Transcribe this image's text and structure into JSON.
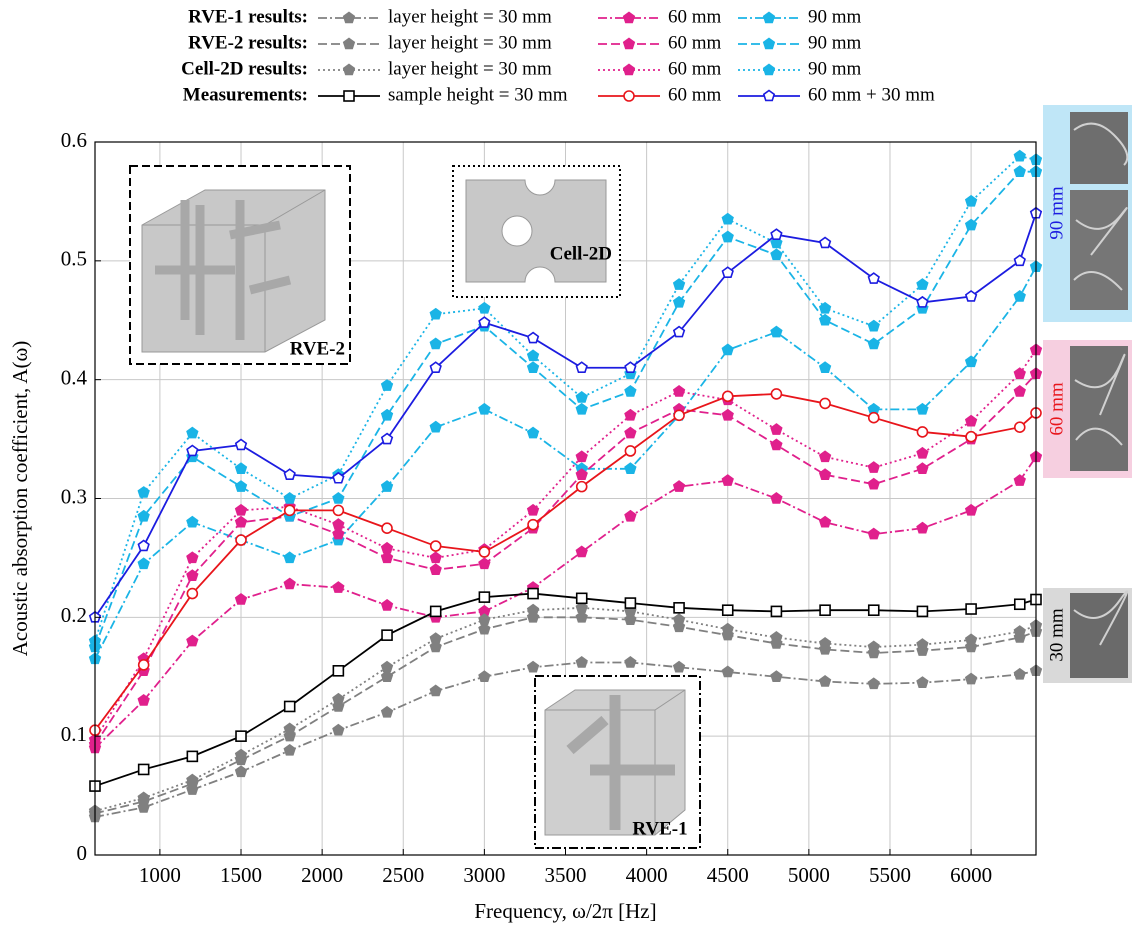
{
  "chart_data": {
    "type": "line",
    "x_label": "Frequency, ω/2π [Hz]",
    "y_label": "Acoustic absorption coefficient, A(ω)",
    "xlim": [
      600,
      6400
    ],
    "ylim": [
      0,
      0.6
    ],
    "xticks": [
      1000,
      1500,
      2000,
      2500,
      3000,
      3500,
      4000,
      4500,
      5000,
      5500,
      6000
    ],
    "yticks": [
      0,
      0.1,
      0.2,
      0.3,
      0.4,
      0.5,
      0.6
    ],
    "grid": true,
    "legend_rows": [
      "RVE-1 results:",
      "RVE-2 results:",
      "Cell-2D results:",
      "Measurements:"
    ],
    "annotations": [
      "RVE-2",
      "Cell-2D",
      "RVE-1"
    ],
    "side_labels": [
      "90 mm",
      "60 mm",
      "30 mm"
    ],
    "x": [
      600,
      900,
      1200,
      1500,
      1800,
      2100,
      2400,
      2700,
      3000,
      3300,
      3600,
      3900,
      4200,
      4500,
      4800,
      5100,
      5400,
      5700,
      6000,
      6300,
      6400
    ],
    "series": [
      {
        "name": "layer height = 30 mm",
        "color": "#808080",
        "dash": "dashdot",
        "marker": "pentagon-filled",
        "values": [
          0.032,
          0.04,
          0.055,
          0.07,
          0.088,
          0.105,
          0.12,
          0.138,
          0.15,
          0.158,
          0.162,
          0.162,
          0.158,
          0.154,
          0.15,
          0.146,
          0.144,
          0.145,
          0.148,
          0.152,
          0.155
        ]
      },
      {
        "name": "60 mm",
        "color": "#e0208c",
        "dash": "dashdot",
        "marker": "pentagon-filled",
        "values": [
          0.09,
          0.13,
          0.18,
          0.215,
          0.228,
          0.225,
          0.21,
          0.2,
          0.205,
          0.225,
          0.255,
          0.285,
          0.31,
          0.315,
          0.3,
          0.28,
          0.27,
          0.275,
          0.29,
          0.315,
          0.335
        ]
      },
      {
        "name": "90 mm",
        "color": "#1ab4e6",
        "dash": "dashdot",
        "marker": "pentagon-filled",
        "values": [
          0.165,
          0.245,
          0.28,
          0.265,
          0.25,
          0.265,
          0.31,
          0.36,
          0.375,
          0.355,
          0.325,
          0.325,
          0.37,
          0.425,
          0.44,
          0.41,
          0.375,
          0.375,
          0.415,
          0.47,
          0.495
        ]
      },
      {
        "name": "layer height = 30 mm",
        "color": "#808080",
        "dash": "dashed",
        "marker": "pentagon-filled",
        "values": [
          0.035,
          0.045,
          0.06,
          0.08,
          0.1,
          0.125,
          0.15,
          0.175,
          0.19,
          0.2,
          0.2,
          0.198,
          0.192,
          0.185,
          0.178,
          0.173,
          0.17,
          0.172,
          0.175,
          0.183,
          0.188
        ]
      },
      {
        "name": "60 mm",
        "color": "#e0208c",
        "dash": "dashed",
        "marker": "pentagon-filled",
        "values": [
          0.093,
          0.155,
          0.235,
          0.28,
          0.285,
          0.27,
          0.25,
          0.24,
          0.245,
          0.275,
          0.32,
          0.355,
          0.375,
          0.37,
          0.345,
          0.32,
          0.312,
          0.325,
          0.35,
          0.39,
          0.405
        ]
      },
      {
        "name": "90 mm",
        "color": "#1ab4e6",
        "dash": "dashed",
        "marker": "pentagon-filled",
        "values": [
          0.175,
          0.285,
          0.335,
          0.31,
          0.285,
          0.3,
          0.37,
          0.43,
          0.445,
          0.41,
          0.375,
          0.39,
          0.465,
          0.52,
          0.505,
          0.45,
          0.43,
          0.46,
          0.53,
          0.575,
          0.575
        ]
      },
      {
        "name": "layer height = 30 mm",
        "color": "#808080",
        "dash": "dotted",
        "marker": "pentagon-filled",
        "values": [
          0.037,
          0.048,
          0.063,
          0.084,
          0.106,
          0.131,
          0.158,
          0.182,
          0.198,
          0.206,
          0.208,
          0.205,
          0.198,
          0.19,
          0.183,
          0.178,
          0.175,
          0.177,
          0.181,
          0.188,
          0.193
        ]
      },
      {
        "name": "60 mm",
        "color": "#e0208c",
        "dash": "dotted",
        "marker": "pentagon-filled",
        "values": [
          0.097,
          0.165,
          0.25,
          0.29,
          0.293,
          0.278,
          0.258,
          0.25,
          0.257,
          0.29,
          0.335,
          0.37,
          0.39,
          0.383,
          0.358,
          0.335,
          0.326,
          0.338,
          0.365,
          0.405,
          0.425
        ]
      },
      {
        "name": "90 mm",
        "color": "#1ab4e6",
        "dash": "dotted",
        "marker": "pentagon-filled",
        "values": [
          0.18,
          0.305,
          0.355,
          0.325,
          0.3,
          0.32,
          0.395,
          0.455,
          0.46,
          0.42,
          0.385,
          0.405,
          0.48,
          0.535,
          0.515,
          0.46,
          0.445,
          0.48,
          0.55,
          0.588,
          0.585
        ]
      },
      {
        "name": "sample height = 30 mm",
        "color": "#000000",
        "dash": "solid",
        "marker": "square-open",
        "values": [
          0.058,
          0.072,
          0.083,
          0.1,
          0.125,
          0.155,
          0.185,
          0.205,
          0.217,
          0.22,
          0.216,
          0.212,
          0.208,
          0.206,
          0.205,
          0.206,
          0.206,
          0.205,
          0.207,
          0.211,
          0.215
        ]
      },
      {
        "name": "60 mm",
        "color": "#e8151b",
        "dash": "solid",
        "marker": "circle-open",
        "values": [
          0.105,
          0.16,
          0.22,
          0.265,
          0.29,
          0.29,
          0.275,
          0.26,
          0.255,
          0.278,
          0.31,
          0.34,
          0.37,
          0.386,
          0.388,
          0.38,
          0.368,
          0.356,
          0.352,
          0.36,
          0.372
        ]
      },
      {
        "name": "60 mm + 30 mm",
        "color": "#1c1ce0",
        "dash": "solid",
        "marker": "pentagon-open",
        "values": [
          0.2,
          0.26,
          0.34,
          0.345,
          0.32,
          0.317,
          0.35,
          0.41,
          0.448,
          0.435,
          0.41,
          0.41,
          0.44,
          0.49,
          0.522,
          0.515,
          0.485,
          0.465,
          0.47,
          0.5,
          0.54
        ]
      }
    ]
  }
}
